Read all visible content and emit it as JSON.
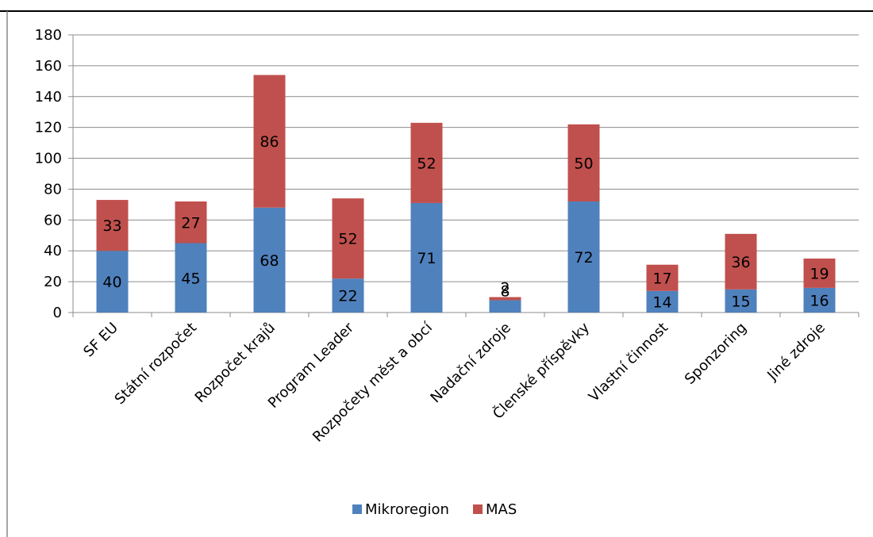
{
  "chart_data": {
    "type": "bar",
    "stacked": true,
    "categories": [
      "SF EU",
      "Státní rozpočet",
      "Rozpočet krajů",
      "Program Leader",
      "Rozpočety měst a obcí",
      "Nadační zdroje",
      "Členské příspěvky",
      "Vlastní činnost",
      "Sponzoring",
      "Jiné zdroje"
    ],
    "series": [
      {
        "name": "Mikroregion",
        "color": "#4f81bd",
        "values": [
          40,
          45,
          68,
          22,
          71,
          8,
          72,
          14,
          15,
          16
        ]
      },
      {
        "name": "MAS",
        "color": "#c0504d",
        "values": [
          33,
          27,
          86,
          52,
          52,
          2,
          50,
          17,
          36,
          19
        ]
      }
    ],
    "ylim": [
      0,
      180
    ],
    "yticks": [
      "0",
      "20",
      "40",
      "60",
      "80",
      "100",
      "120",
      "140",
      "160",
      "180"
    ],
    "grid": true,
    "legend": {
      "position": "bottom",
      "labels": [
        "Mikroregion",
        "MAS"
      ]
    },
    "title": "",
    "xlabel": "",
    "ylabel": ""
  }
}
